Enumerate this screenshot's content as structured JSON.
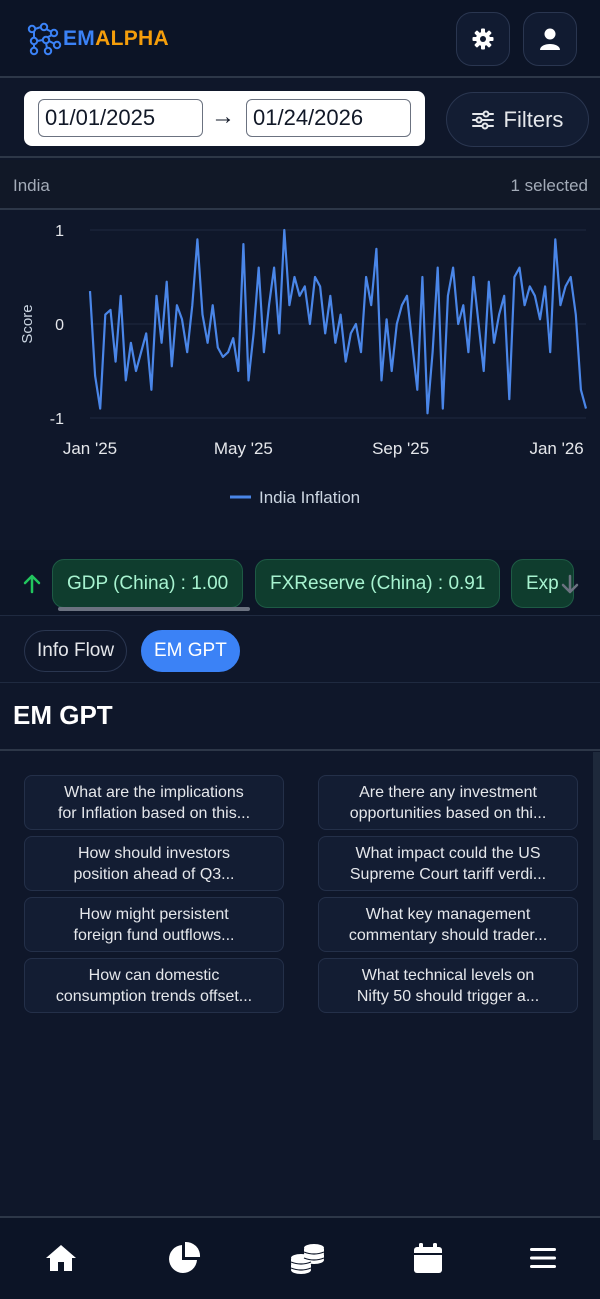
{
  "header": {
    "logo_em": "EM",
    "logo_alpha": "ALPHA",
    "settings_icon": "gear-icon",
    "user_icon": "user-icon"
  },
  "date_range": {
    "start": "01/01/2025",
    "arrow": "→",
    "end": "01/24/2026",
    "filters_label": "Filters",
    "filters_icon": "sliders-icon"
  },
  "selection": {
    "country": "India",
    "count_label": "1 selected"
  },
  "chart_data": {
    "type": "line",
    "ylabel": "Score",
    "ylim": [
      -1,
      1
    ],
    "yticks": [
      "1",
      "0",
      "-1"
    ],
    "xticks": [
      {
        "label": "Jan '25",
        "date": "2025-01-01"
      },
      {
        "label": "May '25",
        "date": "2025-05-01"
      },
      {
        "label": "Sep '25",
        "date": "2025-09-01"
      },
      {
        "label": "Jan '26",
        "date": "2026-01-01"
      }
    ],
    "legend": "bottom-center",
    "color": "#4a86e8",
    "series": [
      {
        "name": "India Inflation",
        "x": [
          "2025-01-01",
          "2025-01-05",
          "2025-01-09",
          "2025-01-13",
          "2025-01-17",
          "2025-01-21",
          "2025-01-25",
          "2025-01-29",
          "2025-02-02",
          "2025-02-06",
          "2025-02-10",
          "2025-02-14",
          "2025-02-18",
          "2025-02-22",
          "2025-02-26",
          "2025-03-02",
          "2025-03-06",
          "2025-03-10",
          "2025-03-14",
          "2025-03-18",
          "2025-03-22",
          "2025-03-26",
          "2025-03-30",
          "2025-04-03",
          "2025-04-07",
          "2025-04-11",
          "2025-04-15",
          "2025-04-19",
          "2025-04-23",
          "2025-04-27",
          "2025-05-01",
          "2025-05-05",
          "2025-05-09",
          "2025-05-13",
          "2025-05-17",
          "2025-05-21",
          "2025-05-25",
          "2025-05-29",
          "2025-06-02",
          "2025-06-06",
          "2025-06-10",
          "2025-06-14",
          "2025-06-18",
          "2025-06-22",
          "2025-06-26",
          "2025-06-30",
          "2025-07-04",
          "2025-07-08",
          "2025-07-12",
          "2025-07-16",
          "2025-07-20",
          "2025-07-24",
          "2025-07-28",
          "2025-08-01",
          "2025-08-05",
          "2025-08-09",
          "2025-08-13",
          "2025-08-17",
          "2025-08-21",
          "2025-08-25",
          "2025-08-29",
          "2025-09-02",
          "2025-09-06",
          "2025-09-10",
          "2025-09-14",
          "2025-09-18",
          "2025-09-22",
          "2025-09-26",
          "2025-09-30",
          "2025-10-04",
          "2025-10-08",
          "2025-10-12",
          "2025-10-16",
          "2025-10-20",
          "2025-10-24",
          "2025-10-28",
          "2025-11-01",
          "2025-11-05",
          "2025-11-09",
          "2025-11-13",
          "2025-11-17",
          "2025-11-21",
          "2025-11-25",
          "2025-11-29",
          "2025-12-03",
          "2025-12-07",
          "2025-12-11",
          "2025-12-15",
          "2025-12-19",
          "2025-12-23",
          "2025-12-27",
          "2025-12-31",
          "2026-01-04",
          "2026-01-08",
          "2026-01-12",
          "2026-01-16",
          "2026-01-20",
          "2026-01-24"
        ],
        "y": [
          0.35,
          -0.55,
          -0.9,
          0.1,
          0.15,
          -0.4,
          0.3,
          -0.6,
          -0.2,
          -0.5,
          -0.3,
          -0.1,
          -0.7,
          0.3,
          -0.2,
          0.45,
          -0.45,
          0.2,
          0.05,
          -0.3,
          0.2,
          0.9,
          0.1,
          -0.2,
          0.2,
          -0.25,
          -0.35,
          -0.3,
          -0.15,
          -0.5,
          0.85,
          -0.6,
          -0.1,
          0.6,
          -0.3,
          0.2,
          0.6,
          -0.1,
          1.0,
          0.2,
          0.5,
          0.3,
          0.4,
          0.0,
          0.5,
          0.4,
          -0.1,
          0.3,
          -0.2,
          0.1,
          -0.4,
          -0.1,
          0.0,
          -0.3,
          0.5,
          0.2,
          0.8,
          -0.6,
          0.05,
          -0.5,
          0.0,
          0.2,
          0.3,
          -0.2,
          -0.7,
          0.5,
          -0.95,
          -0.3,
          0.6,
          -0.9,
          0.3,
          0.6,
          0.0,
          0.2,
          -0.3,
          0.5,
          0.0,
          -0.5,
          0.45,
          -0.2,
          0.1,
          0.3,
          -0.8,
          0.5,
          0.6,
          0.2,
          0.4,
          0.3,
          0.05,
          0.4,
          -0.3,
          0.9,
          0.2,
          0.4,
          0.5,
          0.1,
          -0.7,
          -0.9
        ]
      }
    ]
  },
  "chips": {
    "up_icon": "arrow-up-icon",
    "down_icon": "arrow-down-icon",
    "items": [
      {
        "label": "GDP (China) : 1.00"
      },
      {
        "label": "FXReserve (China) : 0.91"
      },
      {
        "label": "Exp"
      }
    ]
  },
  "tabs": [
    {
      "label": "Info Flow",
      "active": false
    },
    {
      "label": "EM GPT",
      "active": true
    }
  ],
  "gpt": {
    "title": "EM GPT",
    "questions": [
      {
        "line1": "What are the implications",
        "line2": "for Inflation based on this..."
      },
      {
        "line1": "Are there any investment",
        "line2": "opportunities based on thi..."
      },
      {
        "line1": "How should investors",
        "line2": "position ahead of Q3..."
      },
      {
        "line1": "What impact could the US",
        "line2": "Supreme Court tariff verdi..."
      },
      {
        "line1": "How might persistent",
        "line2": "foreign fund outflows..."
      },
      {
        "line1": "What key management",
        "line2": "commentary should trader..."
      },
      {
        "line1": "How can domestic",
        "line2": "consumption trends offset..."
      },
      {
        "line1": "What technical levels on",
        "line2": "Nifty 50 should trigger a..."
      }
    ]
  },
  "bottom_nav": [
    {
      "icon": "home-icon"
    },
    {
      "icon": "pie-chart-icon"
    },
    {
      "icon": "coins-icon"
    },
    {
      "icon": "calendar-icon"
    },
    {
      "icon": "menu-icon"
    }
  ]
}
